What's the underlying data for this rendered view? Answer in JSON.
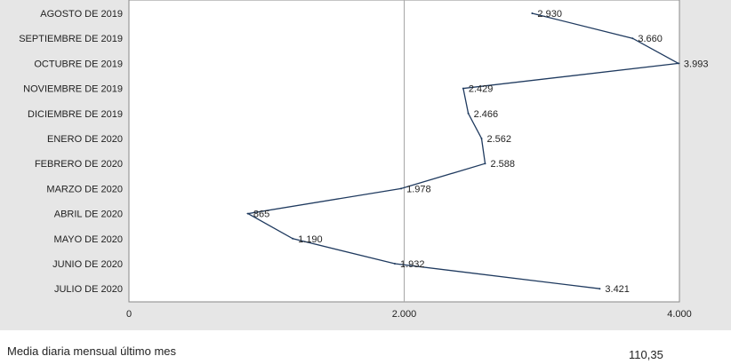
{
  "chart_data": {
    "type": "line",
    "orientation": "horizontal",
    "categories": [
      "AGOSTO DE 2019",
      "SEPTIEMBRE DE 2019",
      "OCTUBRE DE 2019",
      "NOVIEMBRE DE 2019",
      "DICIEMBRE DE 2019",
      "ENERO DE 2020",
      "FEBRERO DE 2020",
      "MARZO DE 2020",
      "ABRIL DE 2020",
      "MAYO DE 2020",
      "JUNIO DE 2020",
      "JULIO DE 2020"
    ],
    "values": [
      2930,
      3660,
      3993,
      2429,
      2466,
      2562,
      2588,
      1978,
      865,
      1190,
      1932,
      3421
    ],
    "value_labels": [
      "2.930",
      "3.660",
      "3.993",
      "2.429",
      "2.466",
      "2.562",
      "2.588",
      "1.978",
      "865",
      "1.190",
      "1.932",
      "3.421"
    ],
    "xlim": [
      0,
      4000
    ],
    "ticks": [
      0,
      2000,
      4000
    ],
    "tick_labels": [
      "0",
      "2.000",
      "4.000"
    ],
    "title": "",
    "xlabel": "",
    "ylabel": "",
    "grid": "vertical line at 2.000",
    "legend": "none",
    "colors": {
      "line": "#1f3a5f",
      "background": "#e6e6e6",
      "plot_background": "#ffffff",
      "gridline": "#a6a6a6"
    }
  },
  "footer": {
    "label": "Media diaria mensual último mes",
    "value": "110,35"
  }
}
